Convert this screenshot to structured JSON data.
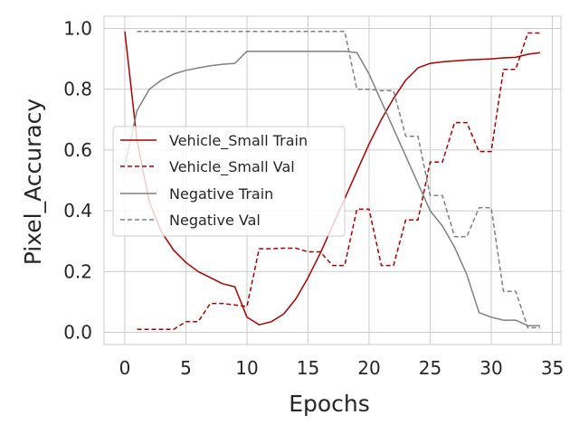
{
  "chart_data": {
    "type": "line",
    "title": "",
    "xlabel": "Epochs",
    "ylabel": "Pixel_Accuracy",
    "xlim": [
      -1.7,
      35.7
    ],
    "ylim": [
      -0.04,
      1.04
    ],
    "xticks": [
      0,
      5,
      10,
      15,
      20,
      25,
      30,
      35
    ],
    "yticks": [
      0.0,
      0.2,
      0.4,
      0.6,
      0.8,
      1.0
    ],
    "xtick_labels": [
      "0",
      "5",
      "10",
      "15",
      "20",
      "25",
      "30",
      "35"
    ],
    "ytick_labels": [
      "0.0",
      "0.2",
      "0.4",
      "0.6",
      "0.8",
      "1.0"
    ],
    "grid": true,
    "legend_position": "center-left",
    "series": [
      {
        "name": "Vehicle_Small Train",
        "color": "#aa0000",
        "dash": "solid",
        "x": [
          0,
          1,
          2,
          3,
          4,
          5,
          6,
          7,
          8,
          9,
          10,
          11,
          12,
          13,
          14,
          15,
          16,
          17,
          18,
          19,
          20,
          21,
          22,
          23,
          24,
          25,
          26,
          27,
          28,
          29,
          30,
          31,
          32,
          33,
          34
        ],
        "y": [
          0.99,
          0.63,
          0.43,
          0.33,
          0.27,
          0.23,
          0.2,
          0.18,
          0.16,
          0.15,
          0.05,
          0.025,
          0.035,
          0.06,
          0.11,
          0.18,
          0.26,
          0.35,
          0.44,
          0.53,
          0.62,
          0.7,
          0.77,
          0.83,
          0.87,
          0.885,
          0.89,
          0.893,
          0.896,
          0.898,
          0.9,
          0.903,
          0.905,
          0.915,
          0.92
        ]
      },
      {
        "name": "Vehicle_Small Val",
        "color": "#aa0000",
        "dash": "dashed",
        "x": [
          1,
          2,
          3,
          4,
          5,
          6,
          7,
          8,
          9,
          10,
          11,
          12,
          13,
          14,
          15,
          16,
          17,
          18,
          19,
          20,
          21,
          22,
          23,
          24,
          25,
          26,
          27,
          28,
          29,
          30,
          31,
          32,
          33,
          34
        ],
        "y": [
          0.01,
          0.01,
          0.01,
          0.01,
          0.035,
          0.035,
          0.095,
          0.095,
          0.09,
          0.085,
          0.275,
          0.275,
          0.277,
          0.277,
          0.265,
          0.265,
          0.22,
          0.22,
          0.405,
          0.405,
          0.22,
          0.22,
          0.37,
          0.37,
          0.56,
          0.56,
          0.69,
          0.69,
          0.595,
          0.595,
          0.865,
          0.865,
          0.985,
          0.985
        ]
      },
      {
        "name": "Negative Train",
        "color": "#808080",
        "dash": "solid",
        "x": [
          0,
          1,
          2,
          3,
          4,
          5,
          6,
          7,
          8,
          9,
          10,
          11,
          12,
          13,
          14,
          15,
          16,
          17,
          18,
          19,
          20,
          21,
          22,
          23,
          24,
          25,
          26,
          27,
          28,
          29,
          30,
          31,
          32,
          33,
          34
        ],
        "y": [
          0.55,
          0.73,
          0.8,
          0.83,
          0.85,
          0.862,
          0.87,
          0.877,
          0.882,
          0.885,
          0.925,
          0.925,
          0.925,
          0.925,
          0.925,
          0.925,
          0.925,
          0.925,
          0.925,
          0.92,
          0.85,
          0.76,
          0.67,
          0.58,
          0.49,
          0.4,
          0.35,
          0.28,
          0.19,
          0.065,
          0.05,
          0.04,
          0.04,
          0.022,
          0.022
        ]
      },
      {
        "name": "Negative Val",
        "color": "#808080",
        "dash": "dashed",
        "x": [
          1,
          2,
          3,
          4,
          5,
          6,
          7,
          8,
          9,
          10,
          11,
          12,
          13,
          14,
          15,
          16,
          17,
          18,
          19,
          20,
          21,
          22,
          23,
          24,
          25,
          26,
          27,
          28,
          29,
          30,
          31,
          32,
          33,
          34
        ],
        "y": [
          0.99,
          0.99,
          0.99,
          0.99,
          0.99,
          0.99,
          0.99,
          0.99,
          0.99,
          0.99,
          0.99,
          0.99,
          0.99,
          0.99,
          0.99,
          0.99,
          0.99,
          0.99,
          0.8,
          0.8,
          0.795,
          0.795,
          0.645,
          0.645,
          0.45,
          0.45,
          0.315,
          0.315,
          0.41,
          0.41,
          0.135,
          0.135,
          0.015,
          0.015
        ]
      }
    ]
  }
}
